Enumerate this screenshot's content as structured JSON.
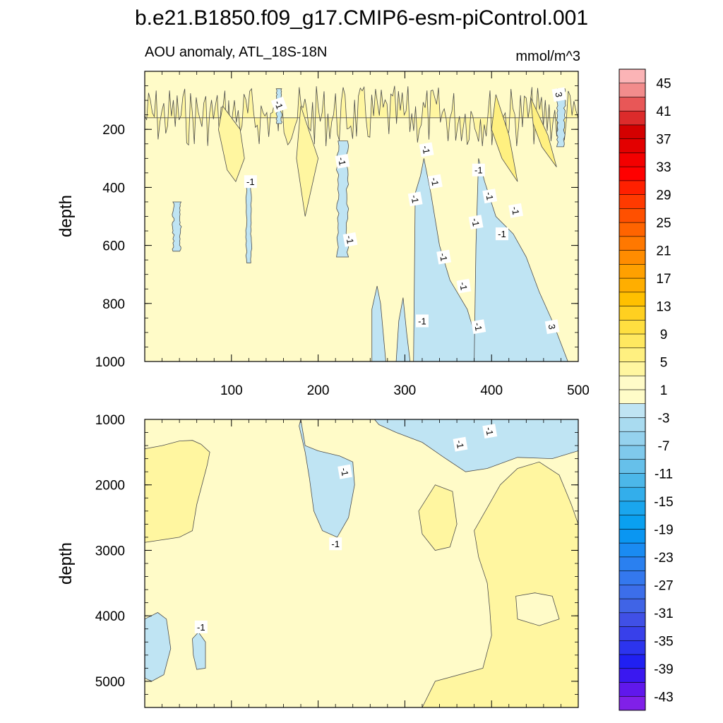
{
  "chart_data": {
    "type": "contour",
    "title": "b.e21.B1850.f09_g17.CMIP6-esm-piControl.001",
    "subtitle_left": "AOU anomaly, ATL_18S-18N",
    "units": "mmol/m^3",
    "x_range": [
      0,
      500
    ],
    "x_ticks": [
      "100",
      "200",
      "300",
      "400",
      "500"
    ],
    "upper_panel": {
      "ylabel": "depth",
      "ylim": [
        0,
        1000
      ],
      "y_ticks": [
        "200",
        "400",
        "600",
        "800",
        "1000"
      ],
      "contour_labels": [
        "-1",
        "-1",
        "-1",
        "-1",
        "-1",
        "-1",
        "-1",
        "-1",
        "-1",
        "-1",
        "-1",
        "-1",
        "-1",
        "-1",
        "-1",
        "-1",
        "3",
        "3"
      ]
    },
    "lower_panel": {
      "ylabel": "depth",
      "ylim": [
        1000,
        5400
      ],
      "y_ticks": [
        "1000",
        "2000",
        "3000",
        "4000",
        "5000"
      ],
      "contour_labels": [
        "-1",
        "-1",
        "-1",
        "-1",
        "-1"
      ]
    },
    "colorbar": {
      "labels": [
        "45",
        "41",
        "37",
        "33",
        "29",
        "25",
        "21",
        "17",
        "13",
        "9",
        "5",
        "1",
        "-3",
        "-7",
        "-11",
        "-15",
        "-19",
        "-23",
        "-27",
        "-31",
        "-35",
        "-39",
        "-43"
      ],
      "colors": [
        "#fbb4b6",
        "#f28c8c",
        "#e85757",
        "#dc2b2b",
        "#d40000",
        "#e30000",
        "#f30000",
        "#ff0000",
        "#ff2000",
        "#ff3a00",
        "#ff5000",
        "#ff6400",
        "#ff7800",
        "#ff8c00",
        "#ffa000",
        "#ffae00",
        "#ffc000",
        "#ffd020",
        "#ffdf40",
        "#ffe860",
        "#fff080",
        "#fff6a0",
        "#fffbc8",
        "#fffcc8",
        "#bfe4f3",
        "#a9dbf0",
        "#95d2ee",
        "#7fc9ec",
        "#66c0ea",
        "#4cb7e9",
        "#33aeeb",
        "#1aa6ee",
        "#0aa0f0",
        "#0a96f2",
        "#1a8bf2",
        "#2a80f0",
        "#3478ee",
        "#3c6eea",
        "#4064e6",
        "#4050e6",
        "#3840ea",
        "#2c34ee",
        "#2020f2",
        "#3a18f0",
        "#6018ec",
        "#8020e8"
      ]
    }
  },
  "palette": {
    "field_yellow": "#fffbc8",
    "field_gold": "#fff6a0",
    "field_blue": "#bfe4f3",
    "field_gold_deep": "#fff080"
  }
}
